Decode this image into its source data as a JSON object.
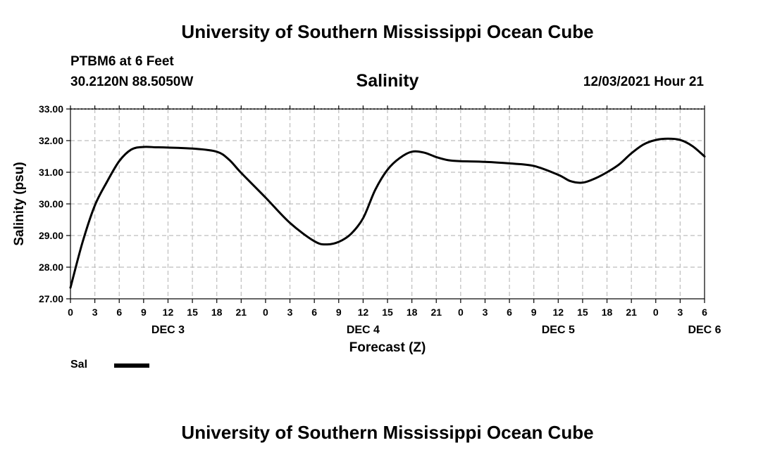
{
  "header": {
    "title": "University of Southern Mississippi Ocean Cube",
    "station": "PTBM6 at 6 Feet",
    "coordinates": "30.2120N  88.5050W",
    "chart_title": "Salinity",
    "timestamp": "12/03/2021 Hour 21"
  },
  "footer": {
    "title": "University of Southern Mississippi Ocean Cube"
  },
  "legend": {
    "label": "Sal",
    "color": "#000000"
  },
  "chart_data": {
    "type": "line",
    "xlabel": "Forecast (Z)",
    "ylabel": "Salinity (psu)",
    "ylim": [
      27.0,
      33.0
    ],
    "yticks": [
      "27.00",
      "28.00",
      "29.00",
      "30.00",
      "31.00",
      "32.00",
      "33.00"
    ],
    "x_tick_labels": [
      "0",
      "3",
      "6",
      "9",
      "12",
      "15",
      "18",
      "21",
      "0",
      "3",
      "6",
      "9",
      "12",
      "15",
      "18",
      "21",
      "0",
      "3",
      "6",
      "9",
      "12",
      "15",
      "18",
      "21",
      "0",
      "3",
      "6"
    ],
    "day_labels": [
      {
        "label": "DEC 3",
        "hour": 12
      },
      {
        "label": "DEC 4",
        "hour": 36
      },
      {
        "label": "DEC 5",
        "hour": 60
      },
      {
        "label": "DEC 6",
        "hour": 78
      }
    ],
    "grid": true,
    "x_unit": "hours from 12/03 00Z",
    "xlim": [
      0,
      78
    ],
    "series": [
      {
        "name": "Sal",
        "color": "#000000",
        "x": [
          0,
          1.5,
          3,
          4.5,
          6,
          7.5,
          9,
          10.5,
          12,
          15,
          18,
          19.5,
          21,
          24,
          27,
          30,
          31.5,
          33,
          34.5,
          36,
          37.5,
          39,
          40.5,
          42,
          43.5,
          45,
          46.5,
          48,
          51,
          54,
          57,
          60,
          61.5,
          63,
          64.5,
          66,
          67.5,
          69,
          70.5,
          72,
          73.5,
          75,
          76.5,
          78
        ],
        "values": [
          27.35,
          28.8,
          29.95,
          30.7,
          31.35,
          31.72,
          31.8,
          31.79,
          31.78,
          31.75,
          31.65,
          31.4,
          30.98,
          30.2,
          29.4,
          28.82,
          28.72,
          28.8,
          29.05,
          29.55,
          30.45,
          31.08,
          31.45,
          31.65,
          31.62,
          31.48,
          31.38,
          31.35,
          31.33,
          31.28,
          31.2,
          30.92,
          30.72,
          30.67,
          30.8,
          31.0,
          31.25,
          31.6,
          31.88,
          32.02,
          32.06,
          32.02,
          31.83,
          31.5
        ]
      }
    ]
  }
}
